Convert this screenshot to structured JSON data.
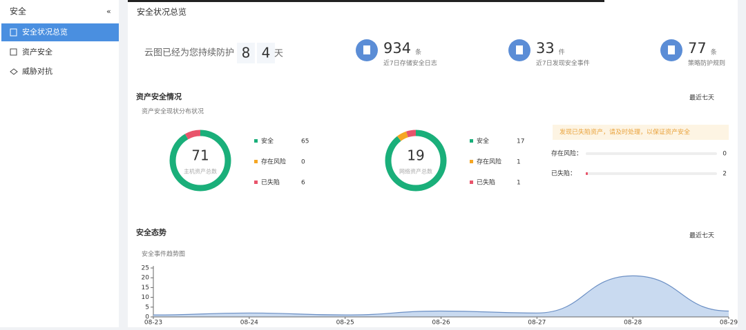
{
  "sidebar": {
    "title": "安全",
    "collapse": "«",
    "items": [
      "安全状况总览",
      "资产安全",
      "威胁对抗"
    ]
  },
  "header": {
    "title": "安全状况总览"
  },
  "protection": {
    "prefix": "云图已经为您持续防护",
    "digits": [
      "8",
      "4"
    ],
    "suffix": "天"
  },
  "stats": [
    {
      "value": 934,
      "unit": "条",
      "label": "近7日存储安全日志"
    },
    {
      "value": 33,
      "unit": "件",
      "label": "近7日发现安全事件"
    },
    {
      "value": 77,
      "unit": "条",
      "label": "策略防护规则"
    }
  ],
  "assets": {
    "title": "资产安全情况",
    "range": "最近七天",
    "subtitle": "资产安全现状分布状况",
    "donuts": [
      {
        "total": 71,
        "caption": "主机资产总数",
        "legend": [
          "安全",
          "存在风险",
          "已失陷"
        ],
        "values": [
          65,
          0,
          6
        ]
      },
      {
        "total": 19,
        "caption": "网络资产总数",
        "legend": [
          "安全",
          "存在风险",
          "已失陷"
        ],
        "values": [
          17,
          1,
          1
        ]
      }
    ],
    "colors": [
      "#1aaf7a",
      "#f5a623",
      "#e8546b"
    ],
    "notice": "发现已失陷资产，请及时处理，以保证资产安全",
    "bars": [
      {
        "label": "存在风险：",
        "value": 0
      },
      {
        "label": "已失陷：",
        "value": 2
      }
    ]
  },
  "trend": {
    "type": "area",
    "title": "安全态势",
    "range": "最近七天",
    "subtitle": "安全事件趋势图",
    "x": [
      "08-23",
      "08-24",
      "08-25",
      "08-26",
      "08-27",
      "08-28",
      "08-29"
    ],
    "values": [
      1,
      2,
      1,
      3,
      2,
      21,
      3
    ],
    "ylim": [
      0,
      25
    ],
    "yticks": [
      0,
      5,
      10,
      15,
      20,
      25
    ],
    "color": "#6b8fc4"
  }
}
